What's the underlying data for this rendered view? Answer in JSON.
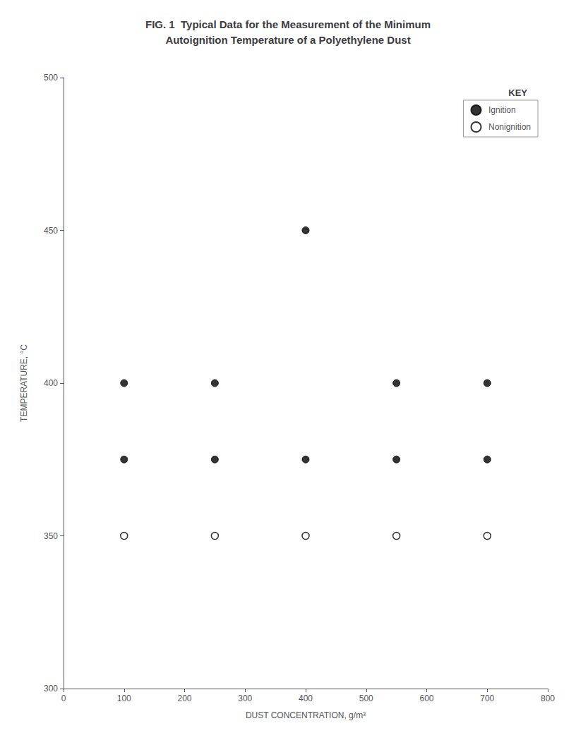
{
  "chart_data": {
    "type": "scatter",
    "title": "FIG. 1  Typical Data for the Measurement of the Minimum\nAutoignition Temperature of a Polyethylene Dust",
    "xlabel": "DUST CONCENTRATION, g/m³",
    "ylabel": "TEMPERATURE, °C",
    "series": [
      {
        "name": "Ignition",
        "color": "#000000",
        "marker": "filled_circle",
        "x": [
          100,
          250,
          400,
          550,
          700,
          100,
          250,
          400,
          550,
          700
        ],
        "values": [
          400,
          400,
          450,
          400,
          400,
          375,
          375,
          375,
          375,
          375
        ]
      },
      {
        "name": "Nonignition",
        "color": "#000000",
        "marker": "open_circle",
        "x": [
          100,
          250,
          400,
          550,
          700
        ],
        "values": [
          350,
          350,
          350,
          350,
          350
        ]
      }
    ],
    "xlim": [
      0,
      800
    ],
    "ylim": [
      300,
      500
    ],
    "xticks": [
      0,
      100,
      200,
      300,
      400,
      500,
      600,
      700,
      800
    ],
    "yticks": [
      300,
      350,
      400,
      450,
      500
    ],
    "grid": false,
    "legend": "upper right",
    "legend_title": "KEY"
  }
}
